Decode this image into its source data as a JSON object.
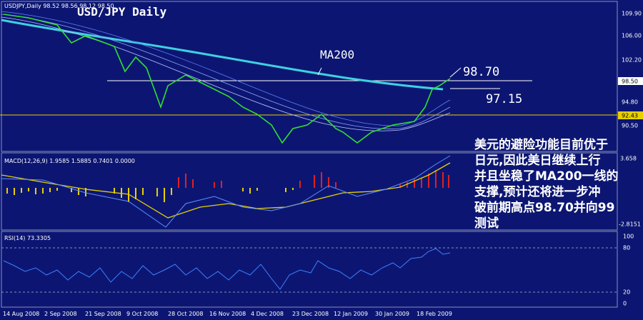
{
  "price_panel": {
    "info_line": "USDJPY,Daily 98.52 98.56 98.12 98.50",
    "title": "USD/JPY Daily",
    "axis_labels": [
      "109.90",
      "106.00",
      "102.20",
      "98.50",
      "94.80",
      "92.43",
      "90.50"
    ],
    "annotations": {
      "ma": "MA200",
      "high": "98.70",
      "support": "97.15"
    }
  },
  "macd_panel": {
    "info_line": "MACD(12,26,9) 1.9585 1.5885 0.7401 0.0000",
    "axis_labels": [
      "3.658",
      "-2.8151"
    ]
  },
  "rsi_panel": {
    "info_line": "RSI(14) 73.3305",
    "axis_labels": [
      "100",
      "80",
      "20",
      "0"
    ]
  },
  "x_axis": {
    "labels": [
      "14 Aug 2008",
      "2 Sep 2008",
      "21 Sep 2008",
      "9 Oct 2008",
      "28 Oct 2008",
      "16 Nov 2008",
      "4 Dec 2008",
      "23 Dec 2008",
      "12 Jan 2009",
      "30 Jan 2009",
      "18 Feb 2009"
    ]
  },
  "comment": {
    "lines": [
      "美元的避险功能目前优于",
      "日元,因此美日继续上行",
      "并且坐稳了MA200一线的",
      "支撑,预计还将进一步冲",
      "破前期高点98.70并向99",
      "测试"
    ]
  }
}
